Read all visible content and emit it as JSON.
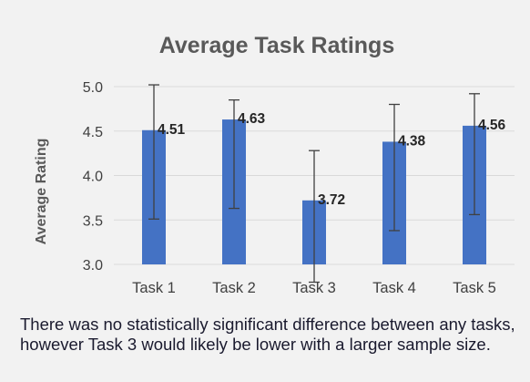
{
  "chart_data": {
    "type": "bar",
    "title": "Average Task Ratings",
    "ylabel": "Average Rating",
    "xlabel": "",
    "categories": [
      "Task 1",
      "Task 2",
      "Task 3",
      "Task 4",
      "Task 5"
    ],
    "values": [
      4.51,
      4.63,
      3.72,
      4.38,
      4.56
    ],
    "data_labels": [
      "4.51",
      "4.63",
      "3.72",
      "4.38",
      "4.56"
    ],
    "error_bars": [
      {
        "low": 3.51,
        "high": 5.02
      },
      {
        "low": 3.63,
        "high": 4.85
      },
      {
        "low": 2.8,
        "high": 4.28
      },
      {
        "low": 3.38,
        "high": 4.8
      },
      {
        "low": 3.56,
        "high": 4.92
      }
    ],
    "ylim": [
      3.0,
      5.0
    ],
    "yticks": [
      "3.0",
      "3.5",
      "4.0",
      "4.5",
      "5.0"
    ],
    "grid": "horizontal",
    "bar_color": "#4472c4",
    "grid_color": "#d9d9d9",
    "legend": "none"
  },
  "caption": "There was no statistically significant difference between any tasks, however Task 3 would likely be lower with a larger sample size."
}
